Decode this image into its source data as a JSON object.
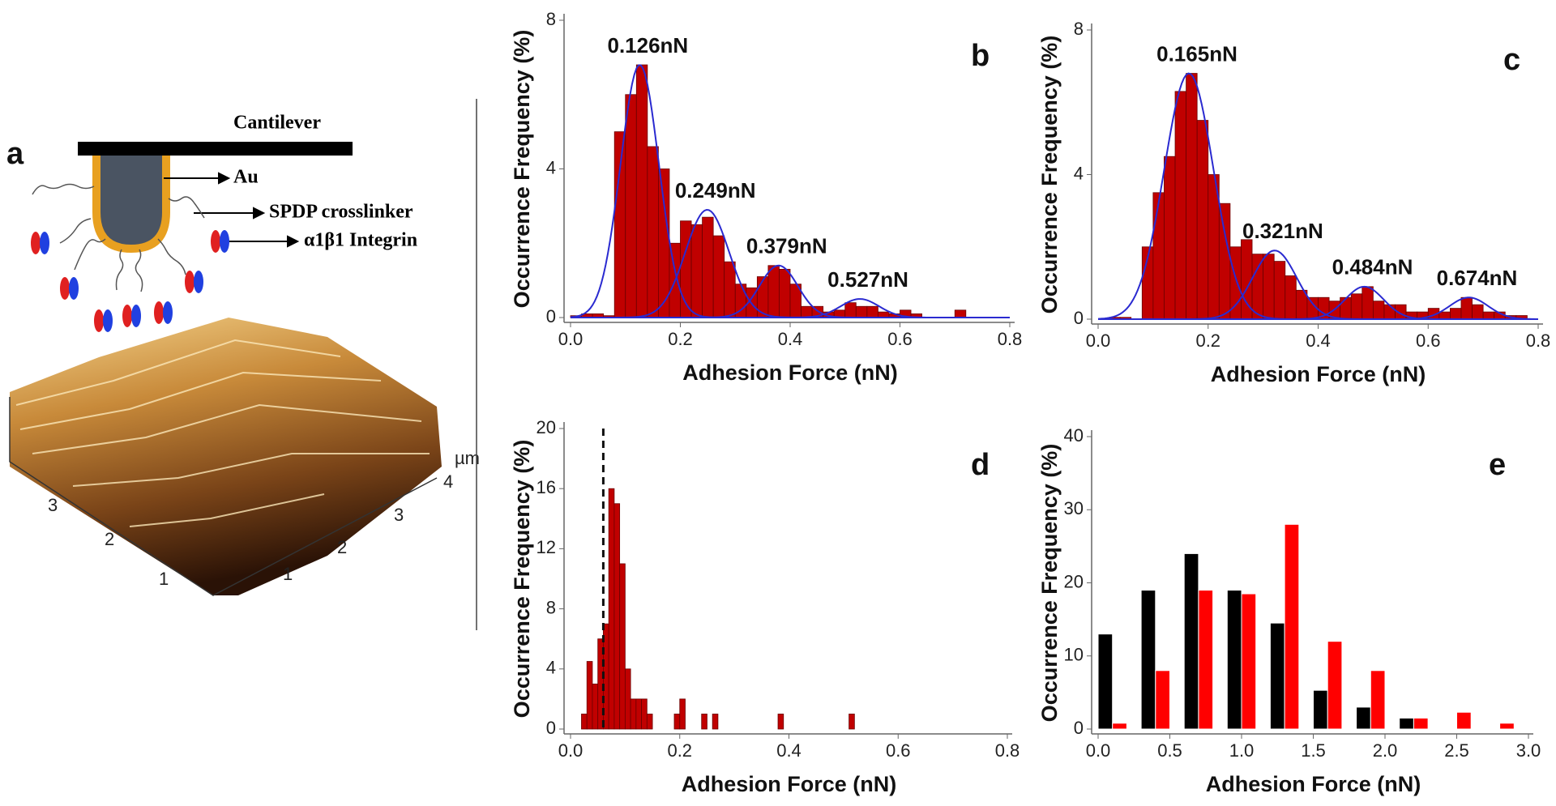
{
  "diagram": {
    "panel": "a",
    "cantilever": "Cantilever",
    "tip": "Au",
    "linker": "SPDP crosslinker",
    "protein": "α1β1 Integrin",
    "surface_unit": "µm",
    "surface_left_ticks": [
      "3",
      "2",
      "1"
    ],
    "surface_right_ticks": [
      "1",
      "2",
      "3",
      "4"
    ]
  },
  "chart_data": [
    {
      "type": "histogram",
      "panel": "b",
      "xlabel": "Adhesion Force (nN)",
      "ylabel": "Occurrence Frequency (%)",
      "color": "#c00000",
      "fit_color": "#2a2ad0",
      "bins": [
        0,
        0.02,
        0.04,
        0.06,
        0.08,
        0.1,
        0.12,
        0.14,
        0.16,
        0.18,
        0.2,
        0.22,
        0.24,
        0.26,
        0.28,
        0.3,
        0.32,
        0.34,
        0.36,
        0.38,
        0.4,
        0.42,
        0.44,
        0.46,
        0.48,
        0.5,
        0.52,
        0.54,
        0.56,
        0.58,
        0.6,
        0.62,
        0.64,
        0.66,
        0.68,
        0.7,
        0.72
      ],
      "counts": [
        0.05,
        0.1,
        0.1,
        0.05,
        5.0,
        6.0,
        6.8,
        4.6,
        4.0,
        2.0,
        2.6,
        2.5,
        2.7,
        2.2,
        1.5,
        0.9,
        0.8,
        1.1,
        1.4,
        1.3,
        0.9,
        0.3,
        0.3,
        0.15,
        0.2,
        0.4,
        0.3,
        0.3,
        0.15,
        0.1,
        0.2,
        0.1,
        0,
        0,
        0,
        0.2
      ],
      "fits": [
        {
          "label": "0.126nN",
          "center": 0.126,
          "amplitude": 6.8,
          "sigma": 0.035
        },
        {
          "label": "0.249nN",
          "center": 0.249,
          "amplitude": 2.9,
          "sigma": 0.04
        },
        {
          "label": "0.379nN",
          "center": 0.379,
          "amplitude": 1.4,
          "sigma": 0.035
        },
        {
          "label": "0.527nN",
          "center": 0.527,
          "amplitude": 0.5,
          "sigma": 0.035
        }
      ],
      "xlim": [
        0,
        0.8
      ],
      "xticks": [
        {
          "value": 0,
          "label": "0.0"
        },
        0.2,
        0.4,
        0.6,
        0.8
      ],
      "ylim": [
        0,
        8
      ],
      "yticks": [
        0,
        4,
        8
      ]
    },
    {
      "type": "histogram",
      "panel": "c",
      "xlabel": "Adhesion Force (nN)",
      "ylabel": "Occurrence Frequency (%)",
      "color": "#c00000",
      "fit_color": "#2a2ad0",
      "bins": [
        0,
        0.02,
        0.04,
        0.06,
        0.08,
        0.1,
        0.12,
        0.14,
        0.16,
        0.18,
        0.2,
        0.22,
        0.24,
        0.26,
        0.28,
        0.3,
        0.32,
        0.34,
        0.36,
        0.38,
        0.4,
        0.42,
        0.44,
        0.46,
        0.48,
        0.5,
        0.52,
        0.54,
        0.56,
        0.58,
        0.6,
        0.62,
        0.64,
        0.66,
        0.68,
        0.7,
        0.72,
        0.74,
        0.76,
        0.78
      ],
      "counts": [
        0,
        0.05,
        0.05,
        0,
        2.0,
        3.5,
        4.5,
        6.3,
        6.8,
        5.5,
        4.0,
        3.2,
        2.0,
        2.2,
        1.8,
        1.8,
        1.6,
        1.2,
        0.8,
        0.6,
        0.6,
        0.5,
        0.6,
        0.7,
        0.9,
        0.5,
        0.4,
        0.4,
        0.2,
        0.2,
        0.3,
        0.2,
        0.3,
        0.6,
        0.4,
        0.2,
        0.2,
        0.1,
        0.1
      ],
      "fits": [
        {
          "label": "0.165nN",
          "center": 0.165,
          "amplitude": 6.8,
          "sigma": 0.045
        },
        {
          "label": "0.321nN",
          "center": 0.321,
          "amplitude": 1.9,
          "sigma": 0.04
        },
        {
          "label": "0.484nN",
          "center": 0.484,
          "amplitude": 0.9,
          "sigma": 0.035
        },
        {
          "label": "0.674nN",
          "center": 0.674,
          "amplitude": 0.6,
          "sigma": 0.035
        }
      ],
      "xlim": [
        0,
        0.8
      ],
      "xticks": [
        {
          "value": 0,
          "label": "0.0"
        },
        0.2,
        0.4,
        0.6,
        0.8
      ],
      "ylim": [
        0,
        8
      ],
      "yticks": [
        0,
        4,
        8
      ]
    },
    {
      "type": "histogram",
      "panel": "d",
      "xlabel": "Adhesion Force (nN)",
      "ylabel": "Occurrence Frequency (%)",
      "color": "#c00000",
      "vline": 0.06,
      "bins": [
        0,
        0.01,
        0.02,
        0.03,
        0.04,
        0.05,
        0.06,
        0.07,
        0.08,
        0.09,
        0.1,
        0.11,
        0.12,
        0.13,
        0.14,
        0.15,
        0.16,
        0.17,
        0.18,
        0.19,
        0.2,
        0.21,
        0.22,
        0.23,
        0.24,
        0.25,
        0.26,
        0.27,
        0.28,
        0.29,
        0.3,
        0.31,
        0.32,
        0.33,
        0.34,
        0.35,
        0.36,
        0.37,
        0.38,
        0.39,
        0.4,
        0.41,
        0.42,
        0.43,
        0.44,
        0.45,
        0.46,
        0.47,
        0.48,
        0.49,
        0.5,
        0.51,
        0.52
      ],
      "counts": [
        0,
        0,
        1,
        4.5,
        3,
        6,
        7,
        16,
        15,
        11,
        4,
        2,
        2,
        2,
        1,
        0,
        0,
        0,
        0,
        1,
        2,
        0,
        0,
        0,
        1,
        0,
        1,
        0,
        0,
        0,
        0,
        0,
        0,
        0,
        0,
        0,
        0,
        0,
        1,
        0,
        0,
        0,
        0,
        0,
        0,
        0,
        0,
        0,
        0,
        0,
        0,
        1
      ],
      "xlim": [
        0,
        0.8
      ],
      "xticks": [
        {
          "value": 0,
          "label": "0.0"
        },
        0.2,
        0.4,
        0.6,
        0.8
      ],
      "ylim": [
        0,
        20
      ],
      "yticks": [
        0,
        4,
        8,
        12,
        16,
        20
      ]
    },
    {
      "type": "bar",
      "panel": "e",
      "xlabel": "Adhesion Force (nN)",
      "ylabel": "Occurrence Frequency (%)",
      "x": [
        0.1,
        0.4,
        0.7,
        1.0,
        1.3,
        1.6,
        1.9,
        2.2,
        2.5,
        2.8
      ],
      "bar_width": 0.1,
      "series": [
        {
          "color": "#000000",
          "values": [
            13,
            19,
            24,
            19,
            14.5,
            5.3,
            3,
            1.5,
            null,
            null
          ]
        },
        {
          "color": "#ff0000",
          "values": [
            0.8,
            8,
            19,
            18.5,
            28,
            12,
            8,
            1.5,
            2.3,
            0.8
          ]
        }
      ],
      "xlim": [
        0,
        3
      ],
      "xticks": [
        {
          "value": 0,
          "label": "0.0"
        },
        0.5,
        {
          "value": 1,
          "label": "1.0"
        },
        1.5,
        {
          "value": 2,
          "label": "2.0"
        },
        2.5,
        {
          "value": 3,
          "label": "3.0"
        }
      ],
      "ylim": [
        0,
        40
      ],
      "yticks": [
        0,
        10,
        20,
        30,
        40
      ]
    }
  ]
}
